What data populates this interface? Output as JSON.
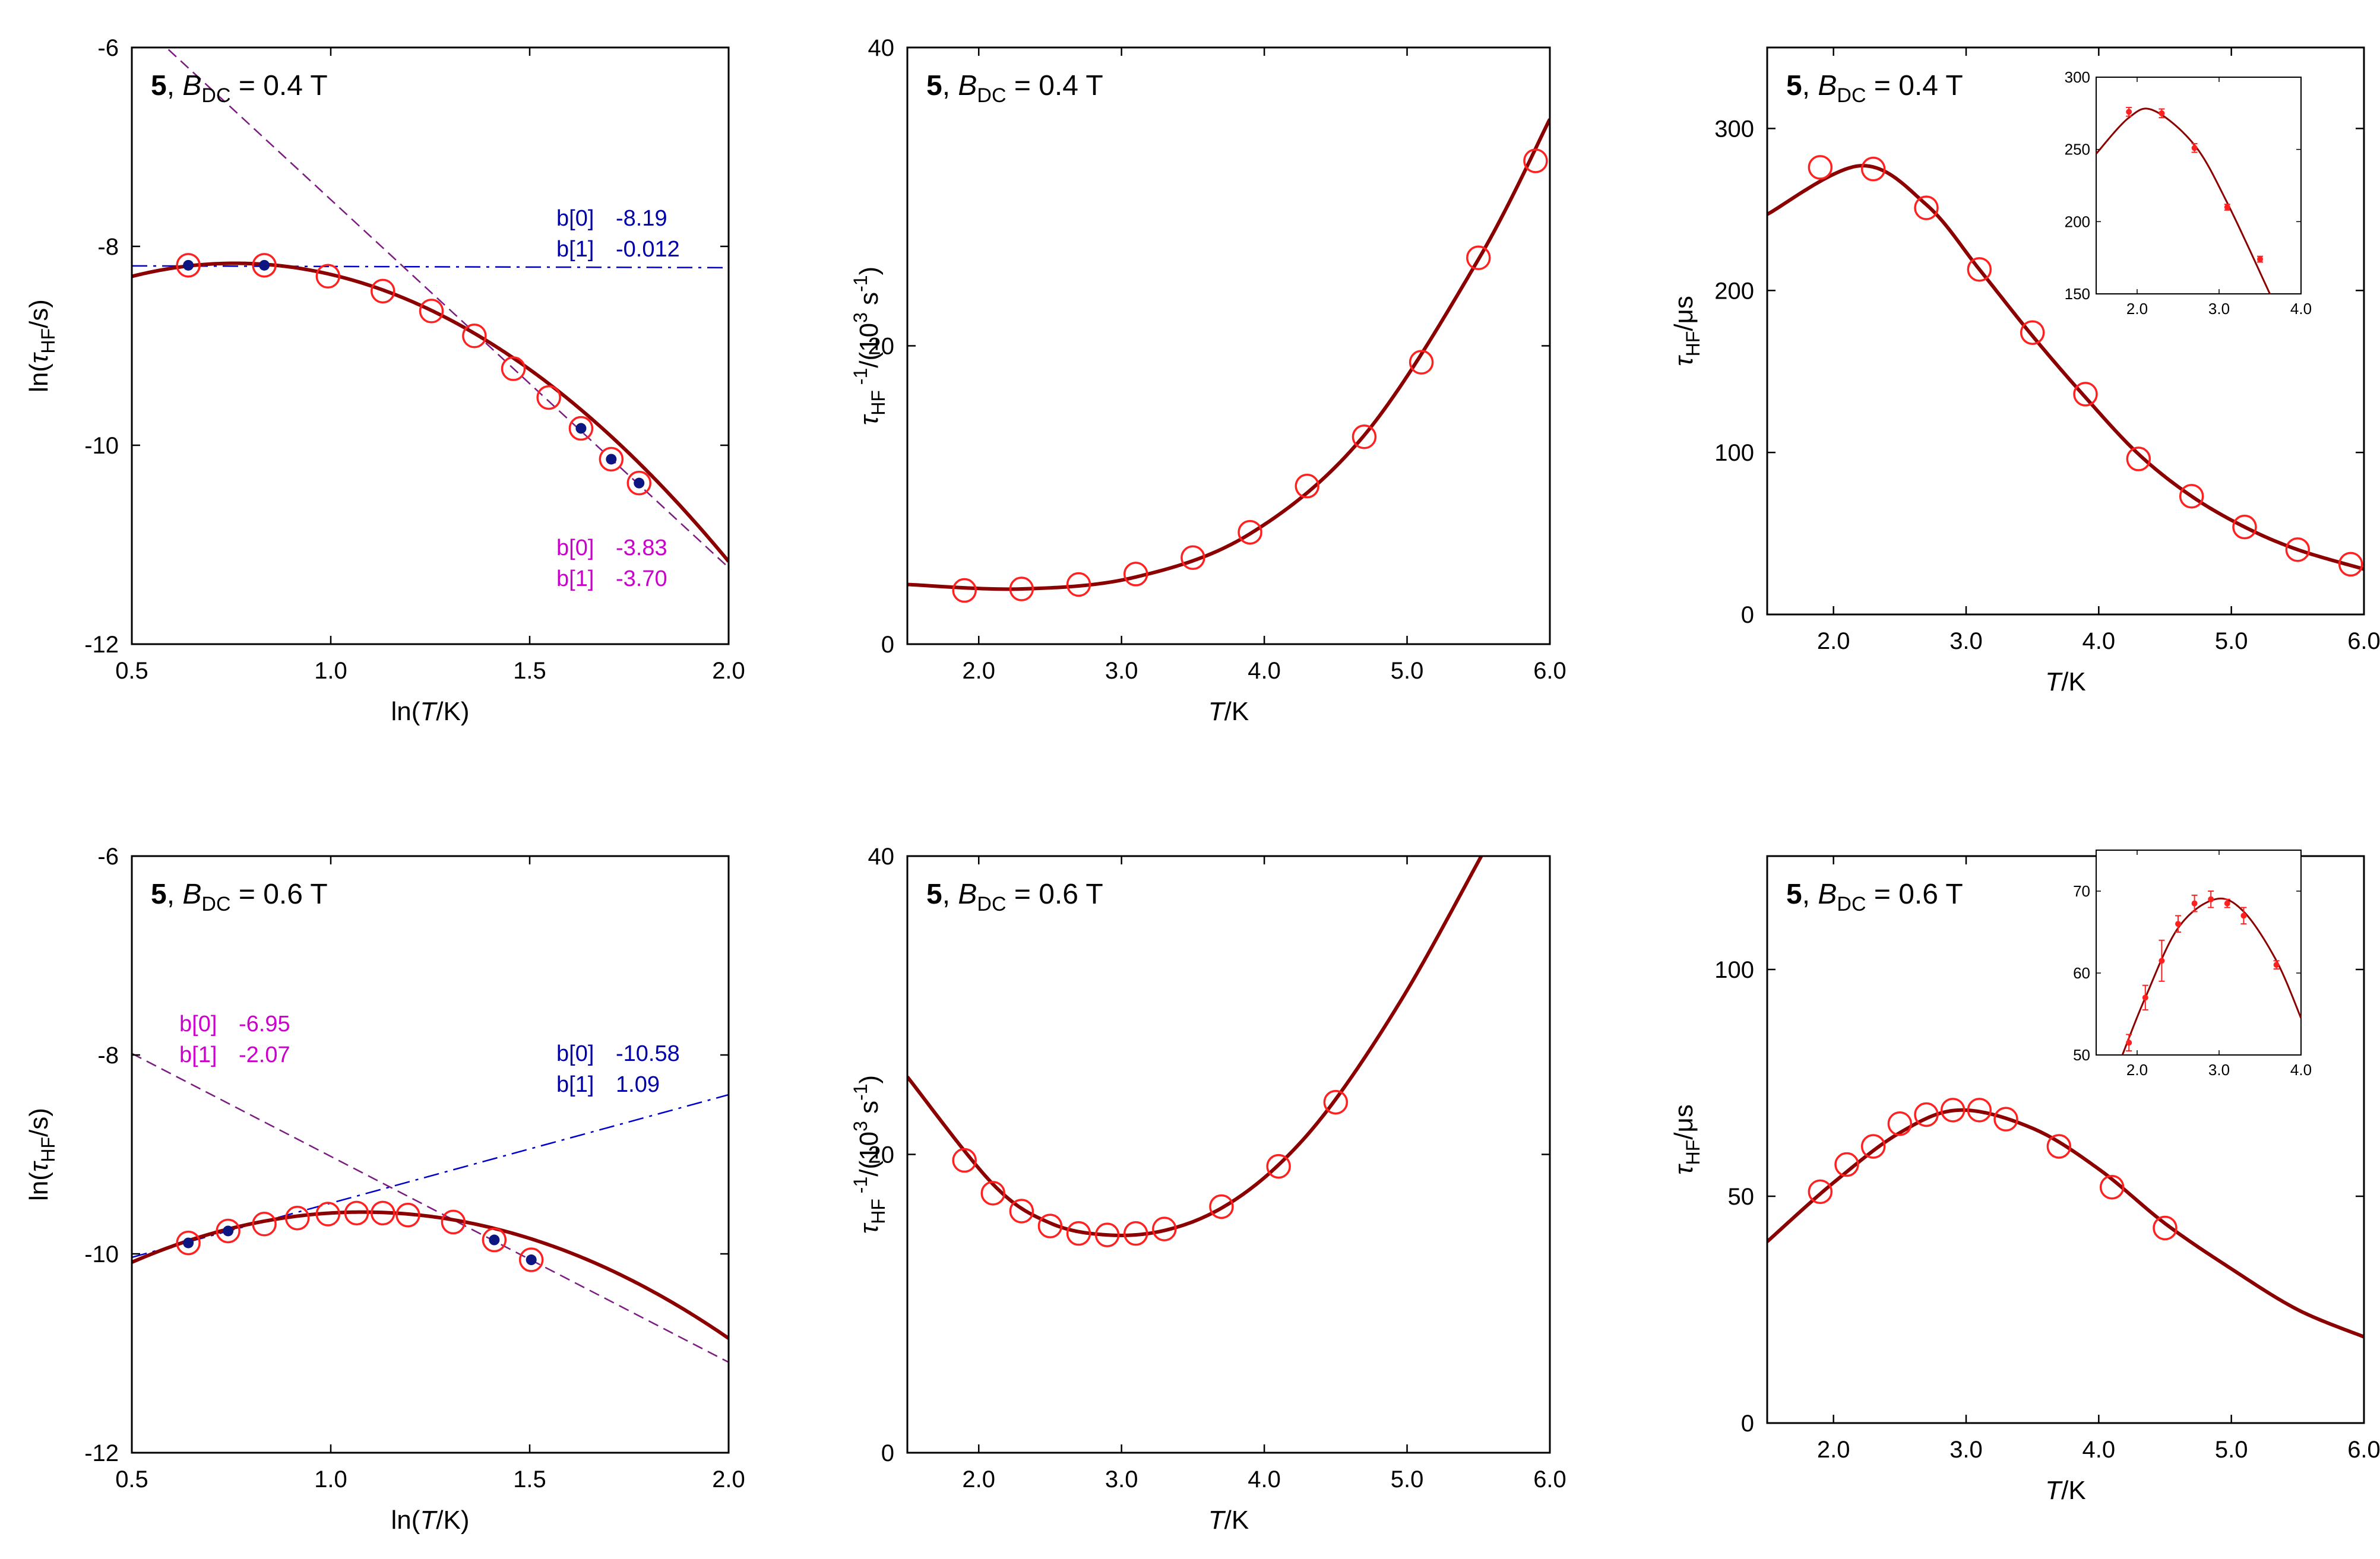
{
  "figure": {
    "common": {
      "compound_label": "5",
      "field_symbol": "B",
      "field_subscript": "DC",
      "equals": "=",
      "field_unit": "T"
    },
    "colors": {
      "fit_line": "#8b0000",
      "circle": "#ff2020",
      "dot": "#0d1680",
      "blue_line": "#0000cc",
      "blue_text": "#0000aa",
      "purple_line": "#7b1a80",
      "magenta_text": "#cc00cc"
    }
  },
  "chart_data": [
    {
      "id": "p1",
      "type": "line+scatter",
      "panel_label": {
        "field_value": "0.4"
      },
      "xlabel": {
        "pre": "ln(",
        "var": "T",
        "post": "/K)"
      },
      "ylabel": {
        "pre": "ln(",
        "var": "τ",
        "sub": "HF",
        "post": "/s)"
      },
      "xlim": [
        0.5,
        2.0
      ],
      "ylim": [
        -12,
        -6
      ],
      "xticks": [
        0.5,
        1.0,
        1.5,
        2.0
      ],
      "xtick_labels": [
        "0.5",
        "1.0",
        "1.5",
        "2.0"
      ],
      "yticks": [
        -12,
        -10,
        -8,
        -6
      ],
      "ytick_labels": [
        "-12",
        "-10",
        "-8",
        "-6"
      ],
      "points": {
        "x": [
          0.642,
          0.833,
          0.993,
          1.131,
          1.253,
          1.361,
          1.459,
          1.548,
          1.629,
          1.705,
          1.775
        ],
        "y": [
          -8.19,
          -8.19,
          -8.3,
          -8.45,
          -8.65,
          -8.9,
          -9.23,
          -9.52,
          -9.83,
          -10.14,
          -10.38
        ]
      },
      "filled_points_idx": [
        0,
        1,
        8,
        9,
        10
      ],
      "fit_curve": {
        "x0": 0.76,
        "y0": -8.17,
        "a": 1.95,
        "x_range": [
          0.5,
          2.0
        ]
      },
      "lines": [
        {
          "style": "dashdot",
          "color_key": "blue_line",
          "b0": -8.19,
          "b1": -0.012
        },
        {
          "style": "dashed",
          "color_key": "purple_line",
          "b0": -3.83,
          "b1": -3.7
        }
      ],
      "annotations": [
        {
          "color_key": "blue_text",
          "label": "b[0]",
          "value": "-8.19",
          "pos": "upper-right"
        },
        {
          "color_key": "blue_text",
          "label": "b[1]",
          "value": "-0.012",
          "pos": "upper-right"
        },
        {
          "color_key": "magenta_text",
          "label": "b[0]",
          "value": "-3.83",
          "pos": "lower-right"
        },
        {
          "color_key": "magenta_text",
          "label": "b[1]",
          "value": "-3.70",
          "pos": "lower-right"
        }
      ]
    },
    {
      "id": "p2",
      "type": "line+scatter",
      "panel_label": {
        "field_value": "0.4"
      },
      "xlabel": {
        "pre": "",
        "var": "T",
        "post": "/K"
      },
      "ylabel": {
        "pre": "",
        "var": "τ",
        "sub": "HF",
        "post": ""
      },
      "xlim": [
        1.5,
        6.0
      ],
      "ylim": [
        0,
        40
      ],
      "xticks": [
        2,
        3,
        4,
        5,
        6
      ],
      "xtick_labels": [
        "2.0",
        "3.0",
        "4.0",
        "5.0",
        "6.0"
      ],
      "yticks": [
        0,
        20,
        40
      ],
      "ytick_labels": [
        "0",
        "20",
        "40"
      ],
      "points": {
        "x": [
          1.9,
          2.3,
          2.7,
          3.1,
          3.5,
          3.9,
          4.3,
          4.7,
          5.1,
          5.5,
          5.9
        ],
        "y": [
          3.6,
          3.7,
          4.0,
          4.7,
          5.8,
          7.5,
          10.6,
          13.9,
          18.9,
          25.9,
          32.4
        ]
      },
      "fit_curve": {
        "x_range": [
          1.5,
          6.0
        ],
        "knots_x": [
          1.5,
          2.3,
          3.1,
          3.9,
          4.7,
          5.5,
          6.0
        ],
        "knots_y": [
          4.0,
          3.7,
          4.5,
          7.4,
          14.0,
          25.8,
          35.2
        ]
      }
    },
    {
      "id": "p3",
      "type": "line+scatter",
      "panel_label": {
        "field_value": "0.4"
      },
      "xlabel": {
        "pre": "",
        "var": "T",
        "post": "/K"
      },
      "ylabel": {
        "pre": "",
        "var": "τ",
        "sub": "HF",
        "post": "/μs"
      },
      "xlim": [
        1.5,
        6.0
      ],
      "ylim": [
        0,
        350
      ],
      "xticks": [
        2,
        3,
        4,
        5,
        6
      ],
      "xtick_labels": [
        "2.0",
        "3.0",
        "4.0",
        "5.0",
        "6.0"
      ],
      "yticks": [
        0,
        100,
        200,
        300
      ],
      "ytick_labels": [
        "0",
        "100",
        "200",
        "300"
      ],
      "points": {
        "x": [
          1.9,
          2.3,
          2.7,
          3.1,
          3.5,
          3.9,
          4.3,
          4.7,
          5.1,
          5.5,
          5.9
        ],
        "y": [
          276,
          275,
          251,
          213,
          174,
          136,
          96,
          73,
          54,
          40,
          31
        ]
      },
      "fit_curve": {
        "x_range": [
          1.5,
          6.0
        ],
        "knots_x": [
          1.5,
          2.2,
          2.7,
          3.1,
          3.5,
          3.9,
          4.3,
          4.7,
          5.1,
          5.5,
          6.0
        ],
        "knots_y": [
          247,
          277,
          253,
          213,
          172,
          134,
          99,
          73,
          54,
          40,
          28
        ]
      },
      "inset": {
        "xlim": [
          1.5,
          4.0
        ],
        "ylim": [
          150,
          300
        ],
        "xticks": [
          2,
          3,
          4
        ],
        "xtick_labels": [
          "2.0",
          "3.0",
          "4.0"
        ],
        "yticks": [
          150,
          200,
          250,
          300
        ],
        "ytick_labels": [
          "150",
          "200",
          "250",
          "300"
        ],
        "points": {
          "x": [
            1.9,
            2.3,
            2.7,
            3.1,
            3.5
          ],
          "y": [
            276,
            275,
            251,
            210,
            174
          ]
        },
        "errors": [
          3,
          3,
          3,
          2,
          2
        ],
        "fit_curve": {
          "x_range": [
            1.5,
            3.62
          ],
          "knots_x": [
            1.5,
            1.9,
            2.2,
            2.7,
            3.1,
            3.62
          ],
          "knots_y": [
            247,
            272,
            277,
            253,
            213,
            150
          ]
        }
      }
    },
    {
      "id": "p4",
      "type": "line+scatter",
      "panel_label": {
        "field_value": "0.6"
      },
      "xlabel": {
        "pre": "ln(",
        "var": "T",
        "post": "/K)"
      },
      "ylabel": {
        "pre": "ln(",
        "var": "τ",
        "sub": "HF",
        "post": "/s)"
      },
      "xlim": [
        0.5,
        2.0
      ],
      "ylim": [
        -12,
        -6
      ],
      "xticks": [
        0.5,
        1.0,
        1.5,
        2.0
      ],
      "xtick_labels": [
        "0.5",
        "1.0",
        "1.5",
        "2.0"
      ],
      "yticks": [
        -12,
        -10,
        -8,
        -6
      ],
      "ytick_labels": [
        "-12",
        "-10",
        "-8",
        "-6"
      ],
      "points": {
        "x": [
          0.642,
          0.742,
          0.833,
          0.916,
          0.993,
          1.065,
          1.131,
          1.194,
          1.308,
          1.411,
          1.504
        ],
        "y": [
          -9.89,
          -9.77,
          -9.7,
          -9.64,
          -9.6,
          -9.59,
          -9.59,
          -9.61,
          -9.68,
          -9.86,
          -10.06
        ]
      },
      "filled_points_idx": [
        0,
        1,
        9,
        10
      ],
      "fit_curve": {
        "x0": 1.08,
        "y0": -9.58,
        "a": 1.5,
        "x_range": [
          0.5,
          2.0
        ]
      },
      "lines": [
        {
          "style": "dashdot",
          "color_key": "blue_line",
          "b0": -10.58,
          "b1": 1.09
        },
        {
          "style": "dashed",
          "color_key": "purple_line",
          "b0": -6.95,
          "b1": -2.07
        }
      ],
      "annotations": [
        {
          "color_key": "magenta_text",
          "label": "b[0]",
          "value": "-6.95",
          "pos": "upper-left"
        },
        {
          "color_key": "magenta_text",
          "label": "b[1]",
          "value": "-2.07",
          "pos": "upper-left"
        },
        {
          "color_key": "blue_text",
          "label": "b[0]",
          "value": "-10.58",
          "pos": "upper-right"
        },
        {
          "color_key": "blue_text",
          "label": "b[1]",
          "value": "1.09",
          "pos": "upper-right"
        }
      ]
    },
    {
      "id": "p5",
      "type": "line+scatter",
      "panel_label": {
        "field_value": "0.6"
      },
      "xlabel": {
        "pre": "",
        "var": "T",
        "post": "/K"
      },
      "ylabel": {
        "pre": "",
        "var": "τ",
        "sub": "HF",
        "post": ""
      },
      "xlim": [
        1.5,
        6.0
      ],
      "ylim": [
        0,
        40
      ],
      "xticks": [
        2,
        3,
        4,
        5,
        6
      ],
      "xtick_labels": [
        "2.0",
        "3.0",
        "4.0",
        "5.0",
        "6.0"
      ],
      "yticks": [
        0,
        20,
        40
      ],
      "ytick_labels": [
        "0",
        "20",
        "40"
      ],
      "points": {
        "x": [
          1.9,
          2.1,
          2.3,
          2.5,
          2.7,
          2.9,
          3.1,
          3.3,
          3.7,
          4.1,
          4.5
        ],
        "y": [
          19.6,
          17.4,
          16.2,
          15.2,
          14.7,
          14.6,
          14.7,
          15.0,
          16.5,
          19.2,
          23.5
        ]
      },
      "fit_curve": {
        "x_range": [
          1.5,
          5.52
        ],
        "knots_x": [
          1.5,
          2.1,
          2.5,
          2.9,
          3.3,
          3.7,
          4.1,
          4.5,
          5.0,
          5.52
        ],
        "knots_y": [
          25.2,
          18.0,
          15.4,
          14.6,
          14.9,
          16.4,
          19.3,
          23.7,
          31.0,
          40.0
        ]
      }
    },
    {
      "id": "p6",
      "type": "line+scatter",
      "panel_label": {
        "field_value": "0.6"
      },
      "xlabel": {
        "pre": "",
        "var": "T",
        "post": "/K"
      },
      "ylabel": {
        "pre": "",
        "var": "τ",
        "sub": "HF",
        "post": "/μs"
      },
      "xlim": [
        1.5,
        6.0
      ],
      "ylim": [
        0,
        125
      ],
      "xticks": [
        2,
        3,
        4,
        5,
        6
      ],
      "xtick_labels": [
        "2.0",
        "3.0",
        "4.0",
        "5.0",
        "6.0"
      ],
      "yticks": [
        0,
        50,
        100
      ],
      "ytick_labels": [
        "0",
        "50",
        "100"
      ],
      "points": {
        "x": [
          1.9,
          2.1,
          2.3,
          2.5,
          2.7,
          2.9,
          3.1,
          3.3,
          3.7,
          4.1,
          4.5
        ],
        "y": [
          51,
          57,
          61,
          66,
          68,
          69,
          69,
          67,
          61,
          52,
          43
        ]
      },
      "fit_curve": {
        "x_range": [
          1.5,
          6.0
        ],
        "knots_x": [
          1.5,
          2.0,
          2.5,
          2.95,
          3.5,
          4.0,
          4.5,
          5.0,
          5.5,
          6.0
        ],
        "knots_y": [
          40,
          53,
          64,
          69,
          65,
          56,
          44,
          34,
          25,
          19
        ]
      },
      "inset": {
        "xlim": [
          1.5,
          4.0
        ],
        "ylim": [
          50,
          75
        ],
        "xticks": [
          2,
          3,
          4
        ],
        "xtick_labels": [
          "2.0",
          "3.0",
          "4.0"
        ],
        "yticks": [
          50,
          60,
          70
        ],
        "ytick_labels": [
          "50",
          "60",
          "70"
        ],
        "points": {
          "x": [
            1.9,
            2.1,
            2.3,
            2.5,
            2.7,
            2.9,
            3.1,
            3.3,
            3.7
          ],
          "y": [
            51.5,
            57,
            61.5,
            66,
            68.5,
            69,
            68.5,
            67,
            61
          ]
        },
        "errors": [
          1,
          1.5,
          2.5,
          1,
          1,
          1,
          0.5,
          1,
          0.5
        ],
        "fit_curve": {
          "x_range": [
            1.82,
            4.0
          ],
          "knots_x": [
            1.82,
            2.1,
            2.5,
            2.95,
            3.3,
            3.7,
            4.0
          ],
          "knots_y": [
            50,
            57,
            65.5,
            69,
            67.5,
            61.5,
            54.5
          ]
        }
      }
    }
  ]
}
